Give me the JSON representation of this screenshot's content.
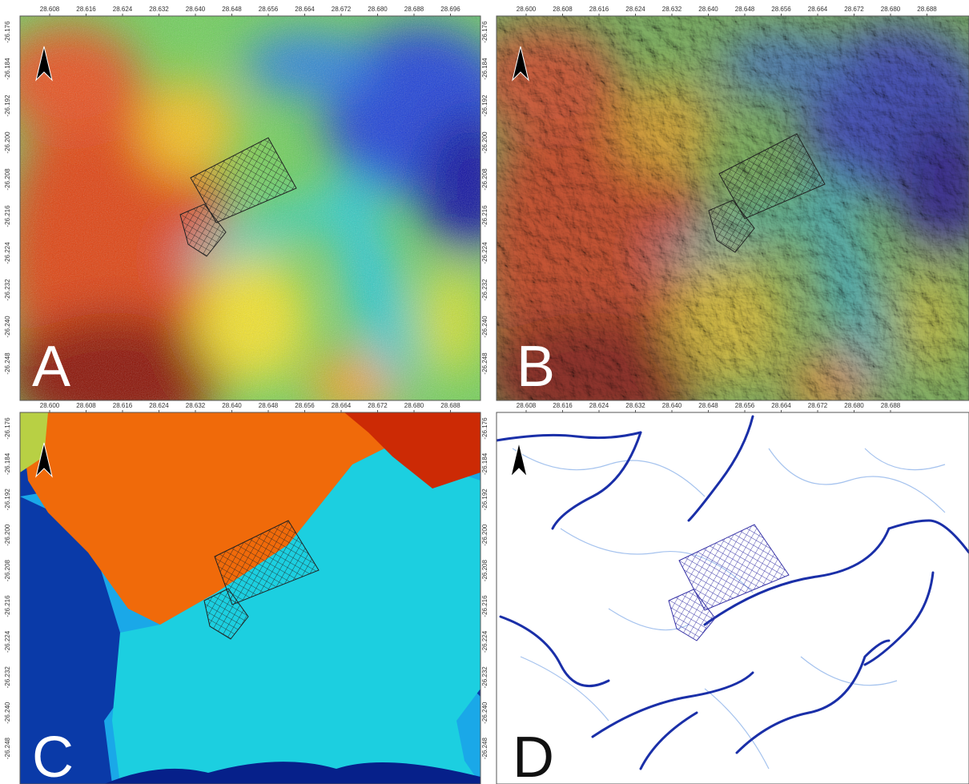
{
  "panels": [
    {
      "label": "A",
      "x_ticks": [
        "28.608",
        "28.616",
        "28.624",
        "28.632",
        "28.640",
        "28.648",
        "28.656",
        "28.664",
        "28.672",
        "28.680",
        "28.688",
        "28.696"
      ],
      "y_ticks": [
        "-26.176",
        "-26.184",
        "-26.192",
        "-26.200",
        "-26.208",
        "-26.216",
        "-26.224",
        "-26.232",
        "-26.240",
        "-26.248"
      ]
    },
    {
      "label": "B",
      "x_ticks": [
        "28.600",
        "28.608",
        "28.616",
        "28.624",
        "28.632",
        "28.640",
        "28.648",
        "28.656",
        "28.664",
        "28.672",
        "28.680",
        "28.688"
      ],
      "y_ticks": [
        "-26.176",
        "-26.184",
        "-26.192",
        "-26.200",
        "-26.208",
        "-26.216",
        "-26.224",
        "-26.232",
        "-26.240",
        "-26.248"
      ]
    },
    {
      "label": "C",
      "x_ticks": [
        "28.600",
        "28.608",
        "28.616",
        "28.624",
        "28.632",
        "28.640",
        "28.648",
        "28.656",
        "28.664",
        "28.672",
        "28.680",
        "28.688"
      ],
      "y_ticks": [
        "-26.176",
        "-26.184",
        "-26.192",
        "-26.200",
        "-26.208",
        "-26.216",
        "-26.224",
        "-26.232",
        "-26.240",
        "-26.248"
      ]
    },
    {
      "label": "D",
      "x_ticks": [
        "28.608",
        "28.616",
        "28.624",
        "28.632",
        "28.640",
        "28.648",
        "28.656",
        "28.664",
        "28.672",
        "28.680",
        "28.688"
      ],
      "y_ticks": [
        "-26.176",
        "-26.184",
        "-26.192",
        "-26.200",
        "-26.208",
        "-26.216",
        "-26.224",
        "-26.232",
        "-26.240",
        "-26.248"
      ]
    }
  ]
}
